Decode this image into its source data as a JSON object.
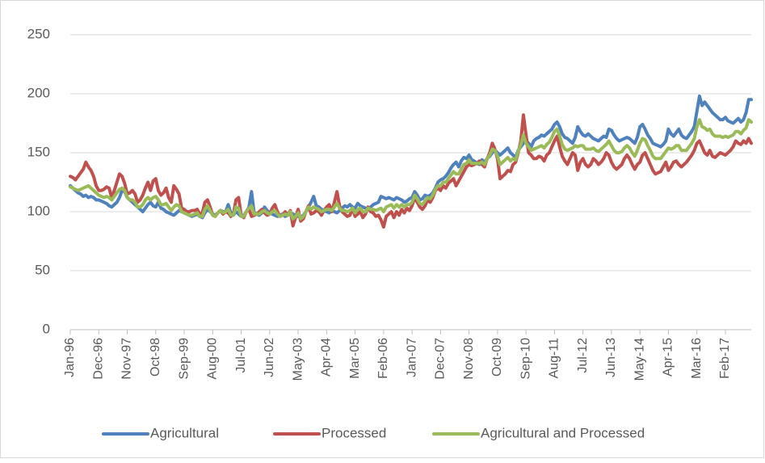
{
  "chart_data": {
    "type": "line",
    "categories": [
      "Jan-96",
      null,
      null,
      null,
      null,
      null,
      null,
      null,
      null,
      null,
      null,
      "Dec-96",
      null,
      null,
      null,
      null,
      null,
      null,
      null,
      null,
      null,
      null,
      "Nov-97",
      null,
      null,
      null,
      null,
      null,
      null,
      null,
      null,
      null,
      null,
      "Oct-98",
      null,
      null,
      null,
      null,
      null,
      null,
      null,
      null,
      null,
      null,
      "Sep-99",
      null,
      null,
      null,
      null,
      null,
      null,
      null,
      null,
      null,
      null,
      "Aug-00",
      null,
      null,
      null,
      null,
      null,
      null,
      null,
      null,
      null,
      null,
      "Jul-01",
      null,
      null,
      null,
      null,
      null,
      null,
      null,
      null,
      null,
      null,
      "Jun-02",
      null,
      null,
      null,
      null,
      null,
      null,
      null,
      null,
      null,
      null,
      "May-03",
      null,
      null,
      null,
      null,
      null,
      null,
      null,
      null,
      null,
      null,
      "Apr-04",
      null,
      null,
      null,
      null,
      null,
      null,
      null,
      null,
      null,
      null,
      "Mar-05",
      null,
      null,
      null,
      null,
      null,
      null,
      null,
      null,
      null,
      null,
      "Feb-06",
      null,
      null,
      null,
      null,
      null,
      null,
      null,
      null,
      null,
      null,
      "Jan-07",
      null,
      null,
      null,
      null,
      null,
      null,
      null,
      null,
      null,
      null,
      "Dec-07",
      null,
      null,
      null,
      null,
      null,
      null,
      null,
      null,
      null,
      null,
      "Nov-08",
      null,
      null,
      null,
      null,
      null,
      null,
      null,
      null,
      null,
      null,
      "Oct-09",
      null,
      null,
      null,
      null,
      null,
      null,
      null,
      null,
      null,
      null,
      "Sep-10",
      null,
      null,
      null,
      null,
      null,
      null,
      null,
      null,
      null,
      null,
      "Aug-11",
      null,
      null,
      null,
      null,
      null,
      null,
      null,
      null,
      null,
      null,
      "Jul-12",
      null,
      null,
      null,
      null,
      null,
      null,
      null,
      null,
      null,
      null,
      "Jun-13",
      null,
      null,
      null,
      null,
      null,
      null,
      null,
      null,
      null,
      null,
      "May-14",
      null,
      null,
      null,
      null,
      null,
      null,
      null,
      null,
      null,
      null,
      "Apr-15",
      null,
      null,
      null,
      null,
      null,
      null,
      null,
      null,
      null,
      null,
      "Mar-16",
      null,
      null,
      null,
      null,
      null,
      null,
      null,
      null,
      null,
      null,
      "Feb-17",
      null,
      null,
      null,
      null,
      null,
      null,
      null,
      null,
      null,
      null
    ],
    "series": [
      {
        "name": "Agricultural",
        "color": "#4f81bd",
        "values": [
          122,
          120,
          118,
          116,
          115,
          113,
          114,
          112,
          113,
          112,
          110,
          110,
          109,
          108,
          107,
          105,
          104,
          106,
          108,
          112,
          118,
          117,
          112,
          110,
          108,
          106,
          104,
          102,
          100,
          103,
          106,
          108,
          105,
          104,
          108,
          103,
          102,
          100,
          99,
          98,
          97,
          99,
          101,
          100,
          99,
          98,
          97,
          96,
          97,
          98,
          96,
          95,
          99,
          102,
          100,
          98,
          97,
          99,
          101,
          100,
          100,
          106,
          99,
          97,
          100,
          98,
          96,
          97,
          100,
          104,
          117,
          99,
          98,
          97,
          99,
          104,
          101,
          99,
          98,
          97,
          96,
          97,
          98,
          96,
          97,
          99,
          98,
          97,
          96,
          95,
          97,
          100,
          104,
          108,
          113,
          105,
          104,
          102,
          101,
          100,
          99,
          102,
          100,
          99,
          101,
          103,
          105,
          104,
          106,
          104,
          103,
          107,
          105,
          104,
          103,
          102,
          104,
          106,
          107,
          108,
          113,
          112,
          111,
          112,
          111,
          110,
          112,
          111,
          110,
          108,
          109,
          111,
          112,
          117,
          114,
          110,
          111,
          114,
          113,
          114,
          116,
          120,
          125,
          127,
          128,
          130,
          133,
          137,
          140,
          142,
          138,
          143,
          146,
          145,
          148,
          144,
          143,
          141,
          140,
          144,
          142,
          145,
          147,
          150,
          152,
          150,
          148,
          150,
          152,
          154,
          150,
          148,
          146,
          152,
          155,
          158,
          160,
          158,
          155,
          160,
          162,
          163,
          165,
          164,
          166,
          168,
          170,
          174,
          176,
          172,
          166,
          163,
          162,
          160,
          158,
          163,
          172,
          168,
          165,
          164,
          166,
          164,
          162,
          161,
          160,
          162,
          164,
          163,
          170,
          169,
          165,
          162,
          160,
          161,
          162,
          163,
          162,
          160,
          158,
          163,
          172,
          174,
          170,
          165,
          162,
          158,
          157,
          156,
          155,
          157,
          160,
          170,
          166,
          164,
          167,
          170,
          165,
          163,
          162,
          165,
          168,
          172,
          185,
          198,
          190,
          193,
          190,
          187,
          184,
          182,
          180,
          178,
          178,
          180,
          177,
          176,
          175,
          177,
          179,
          176,
          178,
          184,
          195,
          195
        ]
      },
      {
        "name": "Processed",
        "color": "#c0504d",
        "values": [
          130,
          129,
          127,
          130,
          133,
          136,
          142,
          138,
          135,
          130,
          122,
          118,
          118,
          119,
          121,
          120,
          112,
          118,
          125,
          132,
          130,
          124,
          115,
          116,
          118,
          115,
          108,
          110,
          114,
          120,
          125,
          118,
          126,
          128,
          118,
          114,
          116,
          120,
          112,
          108,
          122,
          119,
          115,
          103,
          102,
          100,
          100,
          101,
          101,
          102,
          98,
          99,
          108,
          110,
          104,
          97,
          96,
          99,
          101,
          98,
          100,
          99,
          96,
          98,
          110,
          112,
          97,
          95,
          100,
          102,
          96,
          97,
          98,
          100,
          102,
          99,
          97,
          98,
          103,
          106,
          100,
          96,
          97,
          100,
          97,
          101,
          88,
          95,
          102,
          92,
          94,
          100,
          105,
          98,
          99,
          101,
          100,
          97,
          101,
          104,
          106,
          100,
          108,
          117,
          105,
          100,
          98,
          96,
          97,
          103,
          96,
          98,
          100,
          95,
          98,
          104,
          100,
          99,
          96,
          97,
          93,
          87,
          96,
          98,
          100,
          95,
          100,
          97,
          102,
          99,
          103,
          101,
          105,
          112,
          108,
          104,
          102,
          105,
          110,
          108,
          112,
          118,
          120,
          118,
          122,
          120,
          124,
          126,
          128,
          122,
          126,
          130,
          134,
          138,
          140,
          139,
          140,
          141,
          143,
          140,
          138,
          145,
          150,
          158,
          153,
          145,
          128,
          130,
          132,
          135,
          134,
          140,
          142,
          150,
          160,
          182,
          165,
          150,
          148,
          145,
          145,
          147,
          146,
          143,
          148,
          150,
          155,
          160,
          164,
          155,
          147,
          143,
          140,
          145,
          150,
          148,
          135,
          142,
          145,
          140,
          138,
          140,
          145,
          143,
          140,
          142,
          145,
          150,
          148,
          142,
          138,
          136,
          138,
          140,
          145,
          148,
          145,
          140,
          136,
          140,
          142,
          148,
          150,
          145,
          140,
          135,
          132,
          133,
          134,
          138,
          142,
          135,
          138,
          142,
          143,
          140,
          138,
          140,
          142,
          145,
          148,
          152,
          158,
          160,
          155,
          150,
          148,
          152,
          147,
          146,
          148,
          150,
          149,
          148,
          150,
          152,
          155,
          160,
          158,
          157,
          160,
          158,
          162,
          158
        ]
      },
      {
        "name": "Agricultural and Processed",
        "color": "#9bbb59",
        "values": [
          121,
          120,
          119,
          118,
          119,
          120,
          121,
          122,
          120,
          118,
          116,
          114,
          113,
          112,
          113,
          112,
          110,
          113,
          116,
          119,
          120,
          118,
          112,
          110,
          110,
          108,
          104,
          104,
          106,
          110,
          112,
          110,
          112,
          113,
          110,
          106,
          106,
          107,
          104,
          101,
          104,
          106,
          105,
          100,
          99,
          98,
          97,
          97,
          98,
          99,
          96,
          96,
          102,
          105,
          101,
          97,
          96,
          99,
          101,
          99,
          100,
          102,
          97,
          97,
          104,
          103,
          96,
          96,
          100,
          103,
          105,
          98,
          98,
          98,
          100,
          101,
          99,
          98,
          100,
          101,
          98,
          96,
          97,
          98,
          97,
          100,
          94,
          96,
          99,
          94,
          96,
          100,
          104,
          102,
          104,
          103,
          102,
          100,
          101,
          102,
          102,
          101,
          104,
          107,
          103,
          101,
          101,
          100,
          101,
          103,
          99,
          102,
          103,
          100,
          100,
          103,
          102,
          102,
          101,
          102,
          103,
          100,
          104,
          105,
          106,
          103,
          106,
          104,
          106,
          104,
          106,
          106,
          108,
          114,
          111,
          107,
          106,
          109,
          112,
          111,
          114,
          119,
          122,
          122,
          125,
          125,
          128,
          131,
          134,
          132,
          132,
          136,
          140,
          141,
          144,
          141,
          141,
          141,
          141,
          142,
          140,
          145,
          148,
          153,
          152,
          147,
          140,
          142,
          144,
          146,
          143,
          145,
          144,
          151,
          157,
          165,
          158,
          155,
          152,
          153,
          154,
          155,
          156,
          154,
          157,
          159,
          163,
          168,
          170,
          164,
          157,
          153,
          152,
          153,
          154,
          156,
          155,
          156,
          156,
          153,
          153,
          153,
          154,
          152,
          151,
          153,
          155,
          157,
          160,
          156,
          152,
          150,
          150,
          151,
          154,
          156,
          154,
          150,
          147,
          152,
          158,
          162,
          161,
          156,
          152,
          147,
          145,
          145,
          145,
          148,
          151,
          154,
          153,
          154,
          156,
          156,
          152,
          152,
          152,
          155,
          158,
          162,
          172,
          178,
          172,
          171,
          169,
          170,
          166,
          164,
          164,
          164,
          163,
          164,
          163,
          164,
          165,
          168,
          168,
          166,
          169,
          171,
          178,
          176
        ]
      }
    ],
    "ylim": [
      0,
      250
    ],
    "yticks": [
      0,
      50,
      100,
      150,
      200,
      250
    ],
    "grid": true,
    "legend": "bottom"
  }
}
